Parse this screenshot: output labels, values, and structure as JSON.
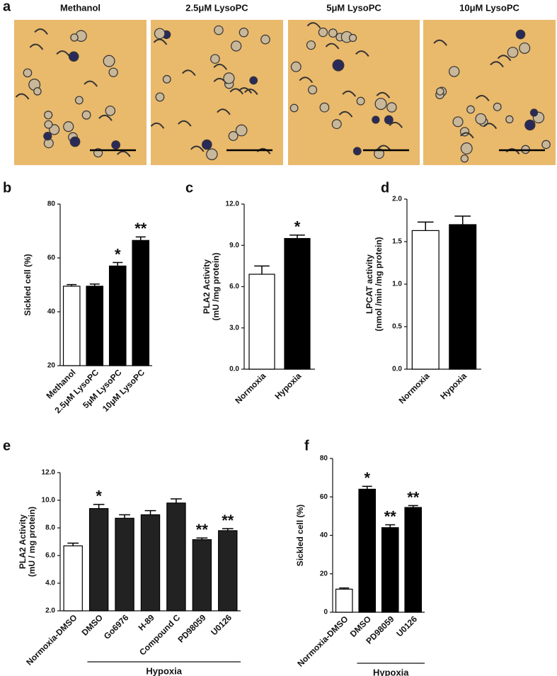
{
  "panel_a": {
    "panel_label": "a",
    "images": [
      "Methanol",
      "2.5μM LysoPC",
      "5μM LysoPC",
      "10μM LysoPC"
    ]
  },
  "chart_data": [
    {
      "type": "bar",
      "panel_label": "b",
      "ylabel": [
        "Sickled cell (%)"
      ],
      "categories": [
        "Methanol",
        "2.5μM LysoPC",
        "5μM LysoPC",
        "10μM LysoPC"
      ],
      "values": [
        49.5,
        49.5,
        57,
        66.5
      ],
      "errors": [
        0.6,
        0.8,
        1.3,
        1.3
      ],
      "colors": [
        "#ffffff",
        "#000000",
        "#000000",
        "#000000"
      ],
      "stars": [
        null,
        null,
        "*",
        "**"
      ],
      "ylim": [
        20,
        80
      ],
      "yticks": [
        20,
        40,
        60,
        80
      ]
    },
    {
      "type": "bar",
      "panel_label": "c",
      "ylabel": [
        "PLA2 Activity",
        "(mU /mg protein)"
      ],
      "categories": [
        "Normoxia",
        "Hypoxia"
      ],
      "values": [
        6.9,
        9.5
      ],
      "errors": [
        0.6,
        0.25
      ],
      "colors": [
        "#ffffff",
        "#000000"
      ],
      "stars": [
        null,
        "*"
      ],
      "ylim": [
        0,
        12
      ],
      "yticks": [
        {
          "value": 0,
          "label": "0.0"
        },
        {
          "value": 3,
          "label": "3.0"
        },
        {
          "value": 6,
          "label": "6.0"
        },
        {
          "value": 9,
          "label": "9.0"
        },
        {
          "value": 12,
          "label": "12.0"
        }
      ]
    },
    {
      "type": "bar",
      "panel_label": "d",
      "ylabel": [
        "LPCAT activity",
        "(nmol /min /mg protein)"
      ],
      "categories": [
        "Normoxia",
        "Hypoxia"
      ],
      "values": [
        1.63,
        1.7
      ],
      "errors": [
        0.1,
        0.1
      ],
      "colors": [
        "#ffffff",
        "#000000"
      ],
      "stars": [
        null,
        null
      ],
      "ylim": [
        0,
        2
      ],
      "yticks": [
        {
          "value": 0,
          "label": "0.0"
        },
        0.5,
        {
          "value": 1,
          "label": "1.0"
        },
        1.5,
        {
          "value": 2,
          "label": "2.0"
        }
      ]
    },
    {
      "type": "bar",
      "panel_label": "e",
      "ylabel": [
        "PLA2 Activity",
        "(mU / mg protein)"
      ],
      "categories": [
        "Normoxia-DMSO",
        "DMSO",
        "Go6976",
        "H-89",
        "Compound C",
        "PD98059",
        "U0126"
      ],
      "values": [
        6.7,
        9.4,
        8.7,
        8.95,
        9.8,
        7.15,
        7.8
      ],
      "errors": [
        0.2,
        0.3,
        0.25,
        0.3,
        0.3,
        0.12,
        0.15
      ],
      "colors": [
        "#ffffff",
        "#222222",
        "#222222",
        "#222222",
        "#222222",
        "#222222",
        "#222222"
      ],
      "stars": [
        null,
        "*",
        null,
        null,
        null,
        "**",
        "**"
      ],
      "group_label": "Hypoxia",
      "ylim": [
        2,
        12
      ],
      "yticks": [
        {
          "value": 2,
          "label": "2.0"
        },
        {
          "value": 4,
          "label": "4.0"
        },
        {
          "value": 6,
          "label": "6.0"
        },
        {
          "value": 8,
          "label": "8.0"
        },
        {
          "value": 10,
          "label": "10.0"
        },
        {
          "value": 12,
          "label": "12.0"
        }
      ]
    },
    {
      "type": "bar",
      "panel_label": "f",
      "ylabel": [
        "Sickled cell (%)"
      ],
      "categories": [
        "Normoxia-DMSO",
        "DMSO",
        "PD98059",
        "U0126"
      ],
      "values": [
        12,
        64,
        44,
        54.5
      ],
      "errors": [
        0.6,
        1.5,
        1.5,
        1
      ],
      "colors": [
        "#ffffff",
        "#000000",
        "#000000",
        "#000000"
      ],
      "stars": [
        null,
        "*",
        "**",
        "**"
      ],
      "group_label": "Hypoxia",
      "ylim": [
        0,
        80
      ],
      "yticks": [
        0,
        20,
        40,
        60,
        80
      ]
    }
  ]
}
